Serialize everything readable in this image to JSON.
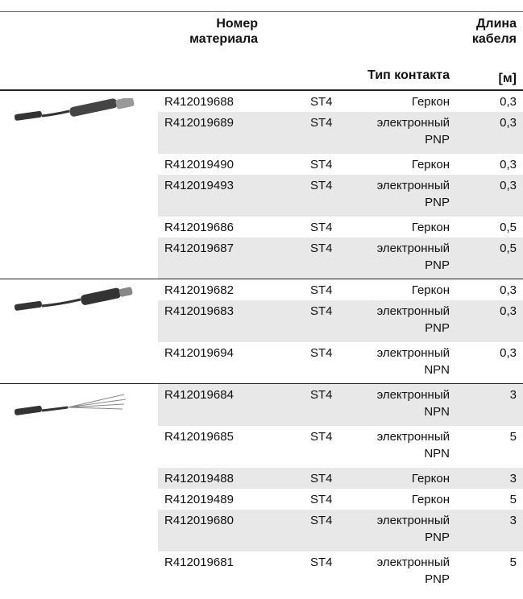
{
  "header": {
    "material": "Номер материала",
    "type": "Тип контакта",
    "length": "Длина кабеля",
    "unit": "[м]"
  },
  "groups": [
    {
      "rows": [
        [
          "R412019688",
          "ST4",
          "Геркон",
          "0,3"
        ],
        [
          "R412019689",
          "ST4",
          "электронный PNP",
          "0,3"
        ],
        [
          "R412019490",
          "ST4",
          "Геркон",
          "0,3"
        ],
        [
          "R412019493",
          "ST4",
          "электронный PNP",
          "0,3"
        ],
        [
          "R412019686",
          "ST4",
          "Геркон",
          "0,5"
        ],
        [
          "R412019687",
          "ST4",
          "электронный PNP",
          "0,5"
        ]
      ]
    },
    {
      "rows": [
        [
          "R412019682",
          "ST4",
          "Геркон",
          "0,3"
        ],
        [
          "R412019683",
          "ST4",
          "электронный PNP",
          "0,3"
        ],
        [
          "R412019694",
          "ST4",
          "электронный NPN",
          "0,3"
        ]
      ]
    },
    {
      "rows": [
        [
          "R412019684",
          "ST4",
          "электронный NPN",
          "3"
        ],
        [
          "R412019685",
          "ST4",
          "электронный NPN",
          "5"
        ],
        [
          "R412019488",
          "ST4",
          "Геркон",
          "3"
        ],
        [
          "R412019489",
          "ST4",
          "Геркон",
          "5"
        ],
        [
          "R412019680",
          "ST4",
          "электронный PNP",
          "3"
        ],
        [
          "R412019681",
          "ST4",
          "электронный PNP",
          "5"
        ]
      ]
    }
  ]
}
